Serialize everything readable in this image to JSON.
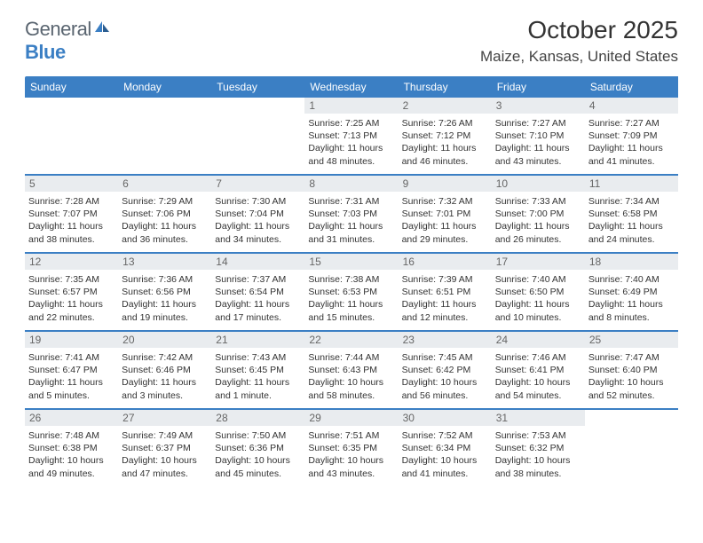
{
  "logo": {
    "text1": "General",
    "text2": "Blue"
  },
  "title": "October 2025",
  "location": "Maize, Kansas, United States",
  "colors": {
    "header_bg": "#3b7fc4",
    "header_text": "#ffffff",
    "daynum_bg": "#e9ecef",
    "daynum_text": "#666666",
    "body_text": "#333333",
    "background": "#ffffff"
  },
  "day_names": [
    "Sunday",
    "Monday",
    "Tuesday",
    "Wednesday",
    "Thursday",
    "Friday",
    "Saturday"
  ],
  "leading_blanks": 3,
  "days": [
    {
      "n": 1,
      "sunrise": "7:25 AM",
      "sunset": "7:13 PM",
      "daylight": "11 hours and 48 minutes."
    },
    {
      "n": 2,
      "sunrise": "7:26 AM",
      "sunset": "7:12 PM",
      "daylight": "11 hours and 46 minutes."
    },
    {
      "n": 3,
      "sunrise": "7:27 AM",
      "sunset": "7:10 PM",
      "daylight": "11 hours and 43 minutes."
    },
    {
      "n": 4,
      "sunrise": "7:27 AM",
      "sunset": "7:09 PM",
      "daylight": "11 hours and 41 minutes."
    },
    {
      "n": 5,
      "sunrise": "7:28 AM",
      "sunset": "7:07 PM",
      "daylight": "11 hours and 38 minutes."
    },
    {
      "n": 6,
      "sunrise": "7:29 AM",
      "sunset": "7:06 PM",
      "daylight": "11 hours and 36 minutes."
    },
    {
      "n": 7,
      "sunrise": "7:30 AM",
      "sunset": "7:04 PM",
      "daylight": "11 hours and 34 minutes."
    },
    {
      "n": 8,
      "sunrise": "7:31 AM",
      "sunset": "7:03 PM",
      "daylight": "11 hours and 31 minutes."
    },
    {
      "n": 9,
      "sunrise": "7:32 AM",
      "sunset": "7:01 PM",
      "daylight": "11 hours and 29 minutes."
    },
    {
      "n": 10,
      "sunrise": "7:33 AM",
      "sunset": "7:00 PM",
      "daylight": "11 hours and 26 minutes."
    },
    {
      "n": 11,
      "sunrise": "7:34 AM",
      "sunset": "6:58 PM",
      "daylight": "11 hours and 24 minutes."
    },
    {
      "n": 12,
      "sunrise": "7:35 AM",
      "sunset": "6:57 PM",
      "daylight": "11 hours and 22 minutes."
    },
    {
      "n": 13,
      "sunrise": "7:36 AM",
      "sunset": "6:56 PM",
      "daylight": "11 hours and 19 minutes."
    },
    {
      "n": 14,
      "sunrise": "7:37 AM",
      "sunset": "6:54 PM",
      "daylight": "11 hours and 17 minutes."
    },
    {
      "n": 15,
      "sunrise": "7:38 AM",
      "sunset": "6:53 PM",
      "daylight": "11 hours and 15 minutes."
    },
    {
      "n": 16,
      "sunrise": "7:39 AM",
      "sunset": "6:51 PM",
      "daylight": "11 hours and 12 minutes."
    },
    {
      "n": 17,
      "sunrise": "7:40 AM",
      "sunset": "6:50 PM",
      "daylight": "11 hours and 10 minutes."
    },
    {
      "n": 18,
      "sunrise": "7:40 AM",
      "sunset": "6:49 PM",
      "daylight": "11 hours and 8 minutes."
    },
    {
      "n": 19,
      "sunrise": "7:41 AM",
      "sunset": "6:47 PM",
      "daylight": "11 hours and 5 minutes."
    },
    {
      "n": 20,
      "sunrise": "7:42 AM",
      "sunset": "6:46 PM",
      "daylight": "11 hours and 3 minutes."
    },
    {
      "n": 21,
      "sunrise": "7:43 AM",
      "sunset": "6:45 PM",
      "daylight": "11 hours and 1 minute."
    },
    {
      "n": 22,
      "sunrise": "7:44 AM",
      "sunset": "6:43 PM",
      "daylight": "10 hours and 58 minutes."
    },
    {
      "n": 23,
      "sunrise": "7:45 AM",
      "sunset": "6:42 PM",
      "daylight": "10 hours and 56 minutes."
    },
    {
      "n": 24,
      "sunrise": "7:46 AM",
      "sunset": "6:41 PM",
      "daylight": "10 hours and 54 minutes."
    },
    {
      "n": 25,
      "sunrise": "7:47 AM",
      "sunset": "6:40 PM",
      "daylight": "10 hours and 52 minutes."
    },
    {
      "n": 26,
      "sunrise": "7:48 AM",
      "sunset": "6:38 PM",
      "daylight": "10 hours and 49 minutes."
    },
    {
      "n": 27,
      "sunrise": "7:49 AM",
      "sunset": "6:37 PM",
      "daylight": "10 hours and 47 minutes."
    },
    {
      "n": 28,
      "sunrise": "7:50 AM",
      "sunset": "6:36 PM",
      "daylight": "10 hours and 45 minutes."
    },
    {
      "n": 29,
      "sunrise": "7:51 AM",
      "sunset": "6:35 PM",
      "daylight": "10 hours and 43 minutes."
    },
    {
      "n": 30,
      "sunrise": "7:52 AM",
      "sunset": "6:34 PM",
      "daylight": "10 hours and 41 minutes."
    },
    {
      "n": 31,
      "sunrise": "7:53 AM",
      "sunset": "6:32 PM",
      "daylight": "10 hours and 38 minutes."
    }
  ]
}
